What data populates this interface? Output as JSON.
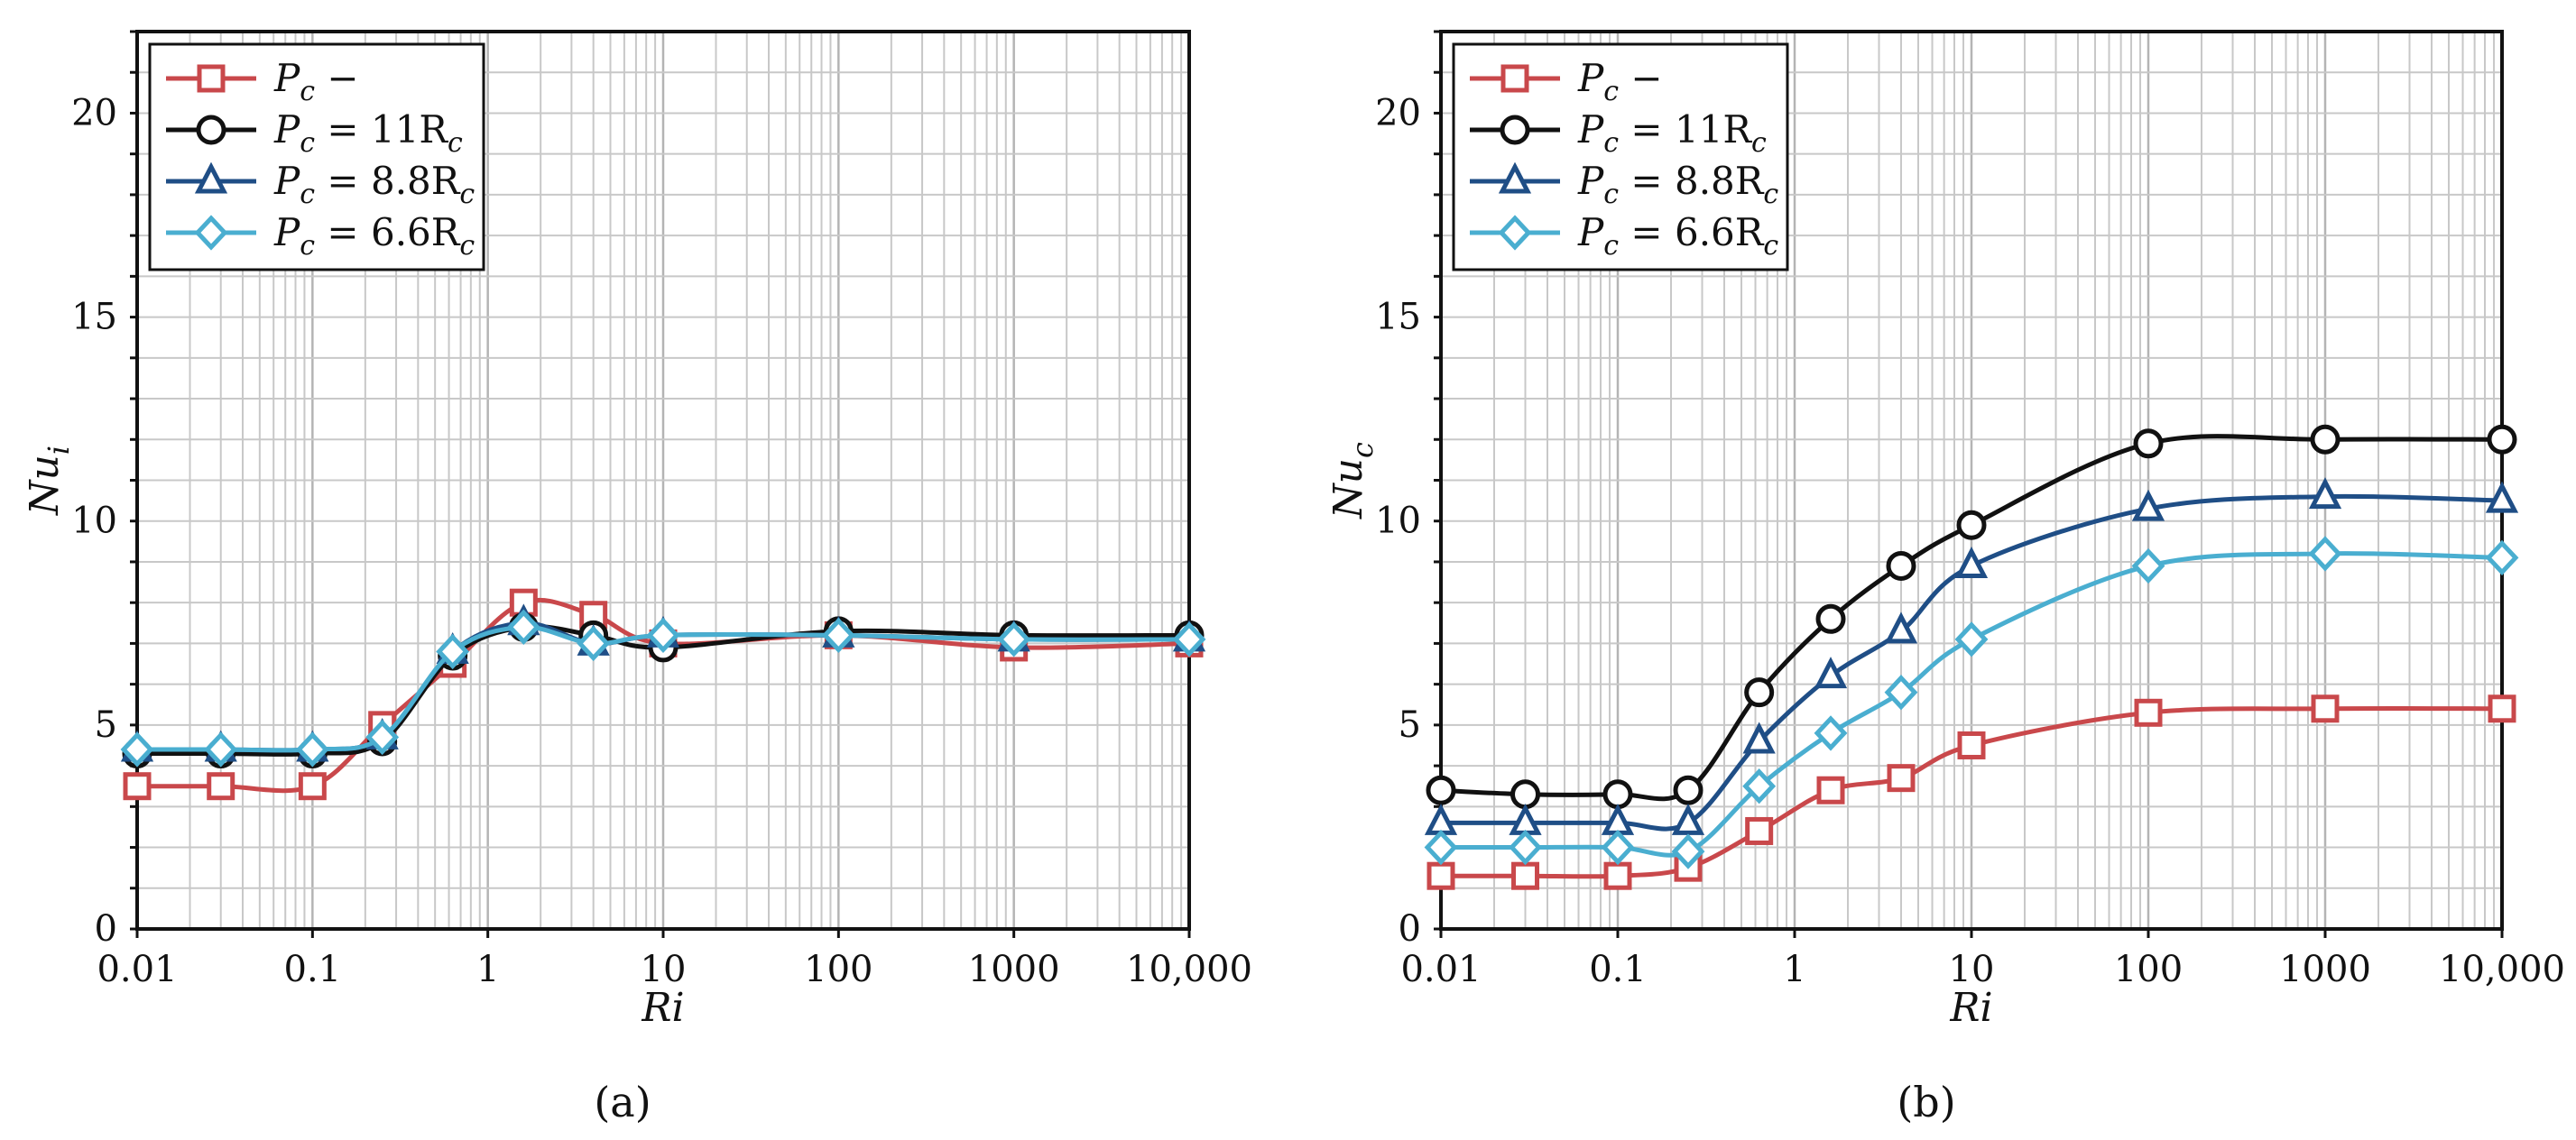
{
  "chart_data": [
    {
      "type": "line",
      "panel_label": "(a)",
      "xlabel": "Ri",
      "ylabel": "Nu",
      "ylabel_sub": "i",
      "xscale": "log",
      "xlim": [
        0.01,
        10000
      ],
      "ylim": [
        0,
        22
      ],
      "x_ticks": [
        0.01,
        0.1,
        1,
        10,
        100,
        1000,
        10000
      ],
      "x_tick_labels": [
        "0.01",
        "0.1",
        "1",
        "10",
        "100",
        "1000",
        "10,000"
      ],
      "y_ticks": [
        0,
        5,
        10,
        15,
        20
      ],
      "y_tick_labels": [
        "0",
        "5",
        "10",
        "15",
        "20"
      ],
      "grid": true,
      "legend_position": "top-left",
      "x": [
        0.01,
        0.03,
        0.1,
        0.25,
        0.63,
        1.6,
        4,
        10,
        100,
        1000,
        10000
      ],
      "series": [
        {
          "name": "Pc −",
          "label_main": "P",
          "label_sub": "c",
          "label_rest": " −",
          "color": "#c9484b",
          "marker": "square",
          "values": [
            3.5,
            3.5,
            3.5,
            5.0,
            6.5,
            8.0,
            7.7,
            7.0,
            7.2,
            6.9,
            7.0
          ]
        },
        {
          "name": "Pc = 11Rc",
          "label_main": "P",
          "label_sub": "c",
          "label_rest": " = 11R",
          "label_sub2": "c",
          "color": "#111111",
          "marker": "circle",
          "values": [
            4.3,
            4.3,
            4.3,
            4.6,
            6.7,
            7.4,
            7.2,
            6.9,
            7.3,
            7.2,
            7.2
          ]
        },
        {
          "name": "Pc = 8.8Rc",
          "label_main": "P",
          "label_sub": "c",
          "label_rest": " = 8.8R",
          "label_sub2": "c",
          "color": "#1f4e86",
          "marker": "triangle",
          "values": [
            4.4,
            4.4,
            4.4,
            4.7,
            6.8,
            7.5,
            7.0,
            7.2,
            7.2,
            7.1,
            7.1
          ]
        },
        {
          "name": "Pc = 6.6Rc",
          "label_main": "P",
          "label_sub": "c",
          "label_rest": " = 6.6R",
          "label_sub2": "c",
          "color": "#4aaed0",
          "marker": "diamond",
          "values": [
            4.4,
            4.4,
            4.4,
            4.7,
            6.8,
            7.4,
            7.0,
            7.2,
            7.2,
            7.1,
            7.1
          ]
        }
      ]
    },
    {
      "type": "line",
      "panel_label": "(b)",
      "xlabel": "Ri",
      "ylabel": "Nu",
      "ylabel_sub": "c",
      "xscale": "log",
      "xlim": [
        0.01,
        10000
      ],
      "ylim": [
        0,
        22
      ],
      "x_ticks": [
        0.01,
        0.1,
        1,
        10,
        100,
        1000,
        10000
      ],
      "x_tick_labels": [
        "0.01",
        "0.1",
        "1",
        "10",
        "100",
        "1000",
        "10,000"
      ],
      "y_ticks": [
        0,
        5,
        10,
        15,
        20
      ],
      "y_tick_labels": [
        "0",
        "5",
        "10",
        "15",
        "20"
      ],
      "grid": true,
      "legend_position": "top-left",
      "x": [
        0.01,
        0.03,
        0.1,
        0.25,
        0.63,
        1.6,
        4,
        10,
        100,
        1000,
        10000
      ],
      "series": [
        {
          "name": "Pc −",
          "label_main": "P",
          "label_sub": "c",
          "label_rest": " −",
          "color": "#c9484b",
          "marker": "square",
          "values": [
            1.3,
            1.3,
            1.3,
            1.5,
            2.4,
            3.4,
            3.7,
            4.5,
            5.3,
            5.4,
            5.4
          ]
        },
        {
          "name": "Pc = 11Rc",
          "label_main": "P",
          "label_sub": "c",
          "label_rest": " = 11R",
          "label_sub2": "c",
          "color": "#111111",
          "marker": "circle",
          "values": [
            3.4,
            3.3,
            3.3,
            3.4,
            5.8,
            7.6,
            8.9,
            9.9,
            11.9,
            12.0,
            12.0
          ]
        },
        {
          "name": "Pc = 8.8Rc",
          "label_main": "P",
          "label_sub": "c",
          "label_rest": " = 8.8R",
          "label_sub2": "c",
          "color": "#1f4e86",
          "marker": "triangle",
          "values": [
            2.6,
            2.6,
            2.6,
            2.6,
            4.6,
            6.2,
            7.3,
            8.9,
            10.3,
            10.6,
            10.5
          ]
        },
        {
          "name": "Pc = 6.6Rc",
          "label_main": "P",
          "label_sub": "c",
          "label_rest": " = 6.6R",
          "label_sub2": "c",
          "color": "#4aaed0",
          "marker": "diamond",
          "values": [
            2.0,
            2.0,
            2.0,
            1.9,
            3.5,
            4.8,
            5.8,
            7.1,
            8.9,
            9.2,
            9.1
          ]
        }
      ]
    }
  ]
}
